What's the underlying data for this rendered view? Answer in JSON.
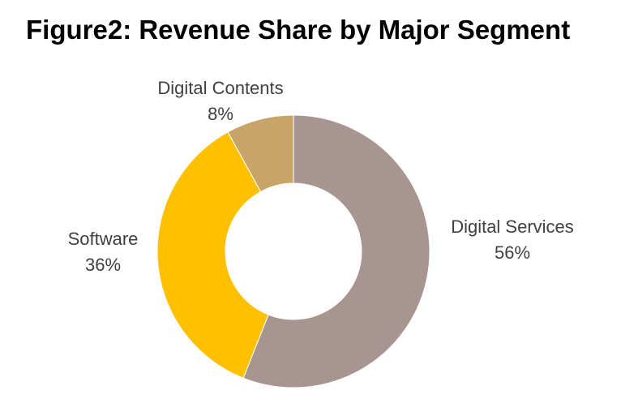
{
  "chart_data": {
    "type": "pie",
    "variant": "donut",
    "title": "Figure2: Revenue Share by Major Segment",
    "slices": [
      {
        "name": "Digital Services",
        "value": 56,
        "label": "56%",
        "color": "#A89490"
      },
      {
        "name": "Software",
        "value": 36,
        "label": "36%",
        "color": "#FFC000"
      },
      {
        "name": "Digital Contents",
        "value": 8,
        "label": "8%",
        "color": "#C9A468"
      }
    ],
    "legend": "none",
    "start_angle_deg": 0,
    "direction": "clockwise"
  }
}
